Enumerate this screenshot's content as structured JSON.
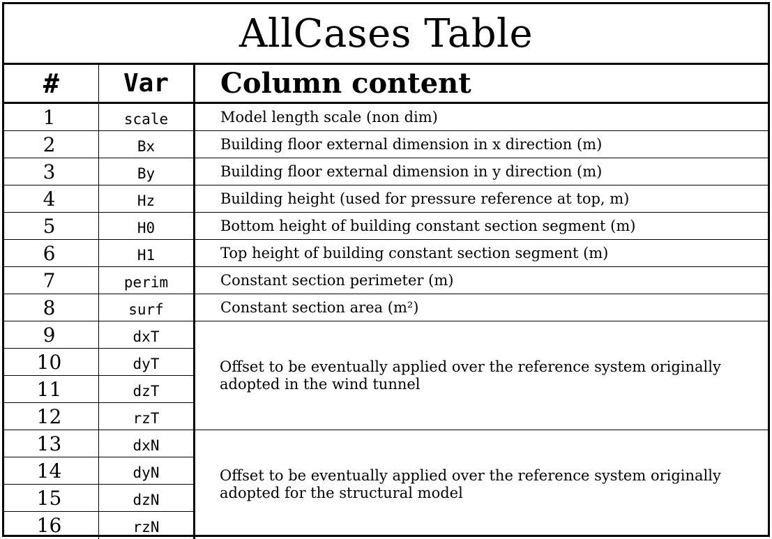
{
  "table": {
    "title": "AllCases Table",
    "headers": {
      "num": "#",
      "var": "Var",
      "content": "Column content"
    },
    "rows": [
      {
        "num": "1",
        "var": "scale",
        "desc": "Model length scale (non dim)"
      },
      {
        "num": "2",
        "var": "Bx",
        "desc": "Building floor external dimension in x direction (m)"
      },
      {
        "num": "3",
        "var": "By",
        "desc": "Building floor external dimension in y direction (m)"
      },
      {
        "num": "4",
        "var": "Hz",
        "desc": "Building height (used for pressure reference at top, m)"
      },
      {
        "num": "5",
        "var": "H0",
        "desc": "Bottom height of building constant section segment (m)"
      },
      {
        "num": "6",
        "var": "H1",
        "desc": "Top height of building constant section segment (m)"
      },
      {
        "num": "7",
        "var": "perim",
        "desc": "Constant section perimeter (m)"
      },
      {
        "num": "8",
        "var": "surf",
        "desc": "Constant section area (m²)"
      },
      {
        "num": "9",
        "var": "dxT"
      },
      {
        "num": "10",
        "var": "dyT"
      },
      {
        "num": "11",
        "var": "dzT"
      },
      {
        "num": "12",
        "var": "rzT"
      },
      {
        "num": "13",
        "var": "dxN"
      },
      {
        "num": "14",
        "var": "dyN"
      },
      {
        "num": "15",
        "var": "dzN"
      },
      {
        "num": "16",
        "var": "rzN"
      }
    ],
    "merged": [
      {
        "first_row": 9,
        "span": 4,
        "desc": "Offset to be eventually applied over the reference system originally adopted in the wind tunnel"
      },
      {
        "first_row": 13,
        "span": 4,
        "desc": "Offset to be eventually applied over the reference system originally adopted for the structural model"
      }
    ]
  }
}
